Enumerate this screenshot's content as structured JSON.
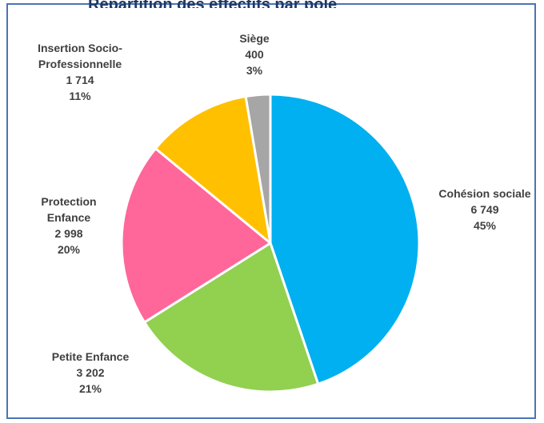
{
  "header": {
    "partial_title": "Répartition des effectifs par pôle"
  },
  "chart_data": {
    "type": "pie",
    "start_angle_deg": 0,
    "direction": "clockwise",
    "slices": [
      {
        "category": "Cohésion sociale",
        "label_lines": [
          "Cohésion sociale"
        ],
        "value_text": "6 749",
        "percent_text": "45%",
        "value": 6749,
        "color": "#00b0f0"
      },
      {
        "category": "Petite Enfance",
        "label_lines": [
          "Petite Enfance"
        ],
        "value_text": "3 202",
        "percent_text": "21%",
        "value": 3202,
        "color": "#92d050"
      },
      {
        "category": "Protection Enfance",
        "label_lines": [
          "Protection",
          "Enfance"
        ],
        "value_text": "2 998",
        "percent_text": "20%",
        "value": 2998,
        "color": "#ff6699"
      },
      {
        "category": "Insertion Socio-Professionnelle",
        "label_lines": [
          "Insertion Socio-",
          "Professionnelle"
        ],
        "value_text": "1 714",
        "percent_text": "11%",
        "value": 1714,
        "color": "#ffc000"
      },
      {
        "category": "Siège",
        "label_lines": [
          "Siège"
        ],
        "value_text": "400",
        "percent_text": "3%",
        "value": 400,
        "color": "#a6a6a6"
      }
    ]
  }
}
